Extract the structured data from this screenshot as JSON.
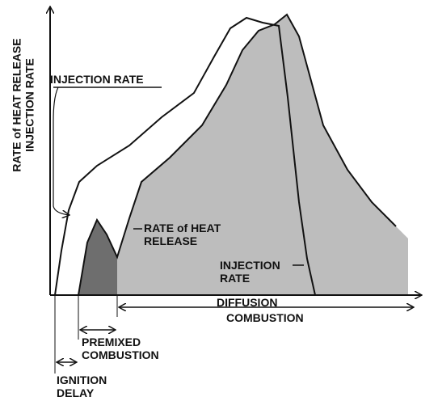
{
  "axis_label": [
    "RATE of HEAT RELEASE",
    "INJECTION RATE"
  ],
  "injection_rate_label": "INJECTION RATE",
  "heat_release_label": [
    "RATE of HEAT",
    "RELEASE"
  ],
  "injection_rate_curve_label": [
    "INJECTION",
    "RATE"
  ],
  "diffusion_label": [
    "DIFFUSION",
    "COMBUSTION"
  ],
  "premixed_label": [
    "PREMIXED",
    "COMBUSTION"
  ],
  "ignition_label": [
    "IGNITION",
    "DELAY"
  ]
}
